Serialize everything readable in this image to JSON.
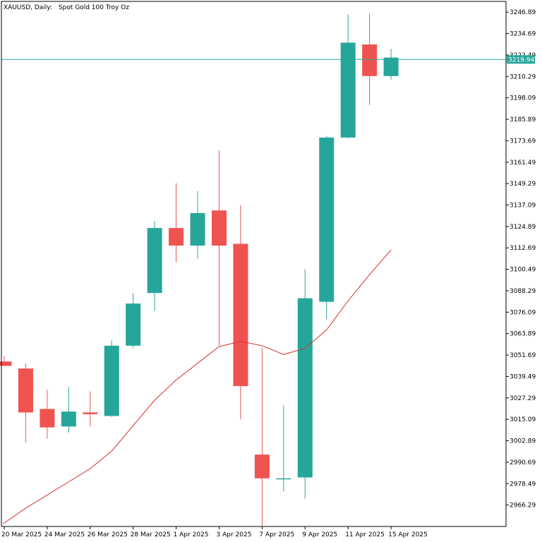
{
  "header": {
    "symbol": "XAUUSD, Daily:",
    "description": "Spot Gold 100 Troy Oz"
  },
  "current_price": {
    "label": "3219.94",
    "value": 3219.94
  },
  "colors": {
    "bull": "#26a69a",
    "bear": "#ef5350",
    "ma": "#d32f2f",
    "price_line": "#26a69a",
    "axis": "#000000"
  },
  "chart_data": {
    "type": "candlestick",
    "title": "",
    "ylim": [
      2954.09,
      3252.99
    ],
    "y_ticks": [
      "3246.89",
      "3234.69",
      "3222.49",
      "3210.29",
      "3198.09",
      "3185.89",
      "3173.69",
      "3161.49",
      "3149.29",
      "3137.09",
      "3124.89",
      "3112.69",
      "3100.49",
      "3088.29",
      "3076.09",
      "3063.89",
      "3051.69",
      "3039.49",
      "3027.29",
      "3015.09",
      "3002.89",
      "2990.69",
      "2978.49",
      "2966.29"
    ],
    "x_labels": [
      "20 Mar 2025",
      "24 Mar 2025",
      "26 Mar 2025",
      "28 Mar 2025",
      "1 Apr 2025",
      "3 Apr 2025",
      "7 Apr 2025",
      "9 Apr 2025",
      "11 Apr 2025",
      "15 Apr 2025"
    ],
    "candles": [
      {
        "open": 3048.0,
        "high": 3051.0,
        "low": 3046.0,
        "close": 3045.5
      },
      {
        "open": 3044.0,
        "high": 3047.0,
        "low": 3002.0,
        "close": 3019.0
      },
      {
        "open": 3021.0,
        "high": 3032.0,
        "low": 3004.0,
        "close": 3010.5
      },
      {
        "open": 3011.0,
        "high": 3033.5,
        "low": 3007.5,
        "close": 3019.5
      },
      {
        "open": 3019.0,
        "high": 3031.0,
        "low": 3011.0,
        "close": 3018.0
      },
      {
        "open": 3017.0,
        "high": 3060.0,
        "low": 3016.5,
        "close": 3057.0
      },
      {
        "open": 3057.0,
        "high": 3087.0,
        "low": 3055.5,
        "close": 3081.0
      },
      {
        "open": 3087.0,
        "high": 3128.0,
        "low": 3077.0,
        "close": 3124.0
      },
      {
        "open": 3124.0,
        "high": 3149.5,
        "low": 3104.5,
        "close": 3114.0
      },
      {
        "open": 3114.0,
        "high": 3145.0,
        "low": 3106.5,
        "close": 3132.5
      },
      {
        "open": 3134.0,
        "high": 3168.0,
        "low": 3057.0,
        "close": 3114.0
      },
      {
        "open": 3115.0,
        "high": 3137.0,
        "low": 3015.0,
        "close": 3034.0
      },
      {
        "open": 2995.0,
        "high": 3056.0,
        "low": 2954.5,
        "close": 2981.5
      },
      {
        "open": 2981.5,
        "high": 3023.0,
        "low": 2974.0,
        "close": 2981.5
      },
      {
        "open": 2982.0,
        "high": 3100.5,
        "low": 2970.0,
        "close": 3084.0
      },
      {
        "open": 3082.0,
        "high": 3176.5,
        "low": 3072.0,
        "close": 3175.5
      },
      {
        "open": 3175.5,
        "high": 3245.5,
        "low": 3175.0,
        "close": 3229.5
      },
      {
        "open": 3228.5,
        "high": 3246.0,
        "low": 3194.0,
        "close": 3210.5
      },
      {
        "open": 3210.5,
        "high": 3226.0,
        "low": 3208.5,
        "close": 3221.0
      }
    ],
    "moving_average": [
      2955.5,
      2964.5,
      2972.0,
      2979.5,
      2987.0,
      2997.0,
      3011.5,
      3026.0,
      3037.5,
      3047.0,
      3056.5,
      3059.5,
      3057.0,
      3052.0,
      3055.5,
      3066.0,
      3082.5,
      3097.5,
      3111.5
    ]
  }
}
